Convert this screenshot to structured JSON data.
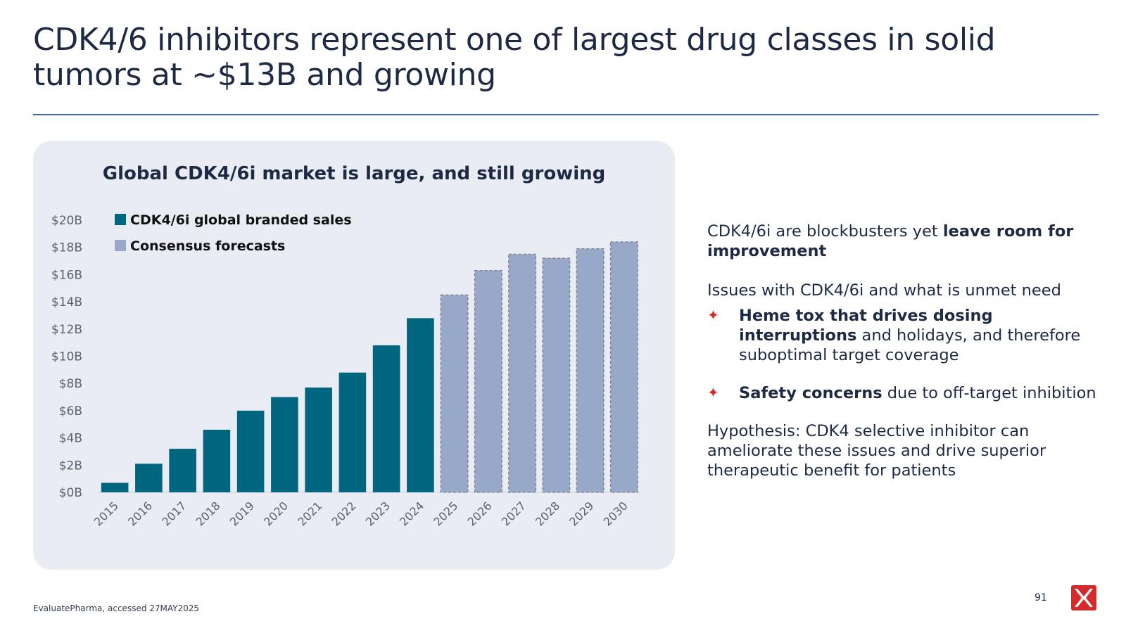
{
  "title": "CDK4/6 inhibitors represent one of largest drug classes in solid tumors at ~$13B and growing",
  "panel_title": "Global CDK4/6i market is large, and still growing",
  "chart_data": {
    "type": "bar",
    "title": "Global CDK4/6i market is large, and still growing",
    "categories": [
      "2015",
      "2016",
      "2017",
      "2018",
      "2019",
      "2020",
      "2021",
      "2022",
      "2023",
      "2024",
      "2025",
      "2026",
      "2027",
      "2028",
      "2029",
      "2030"
    ],
    "series": [
      {
        "name": "CDK4/6i global branded sales",
        "color": "#006680",
        "values": [
          0.7,
          2.1,
          3.2,
          4.6,
          6.0,
          7.0,
          7.7,
          8.8,
          10.8,
          12.8,
          null,
          null,
          null,
          null,
          null,
          null
        ]
      },
      {
        "name": "Consensus forecasts",
        "color": "#98a8c8",
        "values": [
          null,
          null,
          null,
          null,
          null,
          null,
          null,
          null,
          null,
          null,
          14.5,
          16.3,
          17.5,
          17.2,
          17.9,
          18.4
        ]
      }
    ],
    "yticks": [
      "$0B",
      "$2B",
      "$4B",
      "$6B",
      "$8B",
      "$10B",
      "$12B",
      "$14B",
      "$16B",
      "$18B",
      "$20B"
    ],
    "ylim": [
      0,
      20
    ],
    "legend": [
      "CDK4/6i global branded sales",
      "Consensus forecasts"
    ],
    "legend_position": "top-left"
  },
  "right": {
    "intro_plain": "CDK4/6i are blockbusters yet ",
    "intro_bold": "leave room for improvement",
    "issues_head": "Issues with CDK4/6i and what is unmet need",
    "bullet_marker": "✦",
    "bullets": [
      {
        "bold": "Heme tox that drives dosing interruptions",
        "rest": " and holidays, and therefore suboptimal target coverage"
      },
      {
        "bold": "Safety concerns",
        "rest": " due to off-target inhibition"
      }
    ],
    "hypothesis": "Hypothesis: CDK4 selective inhibitor can ameliorate these issues and drive superior therapeutic benefit for patients"
  },
  "footnote": "EvaluatePharma, accessed 27MAY2025",
  "page_number": "91",
  "logo_icon": "x-mark-logo-icon",
  "colors": {
    "accent_red": "#d62a2a",
    "navy": "#1e2a44",
    "teal": "#006680",
    "forecast": "#98a8c8"
  }
}
